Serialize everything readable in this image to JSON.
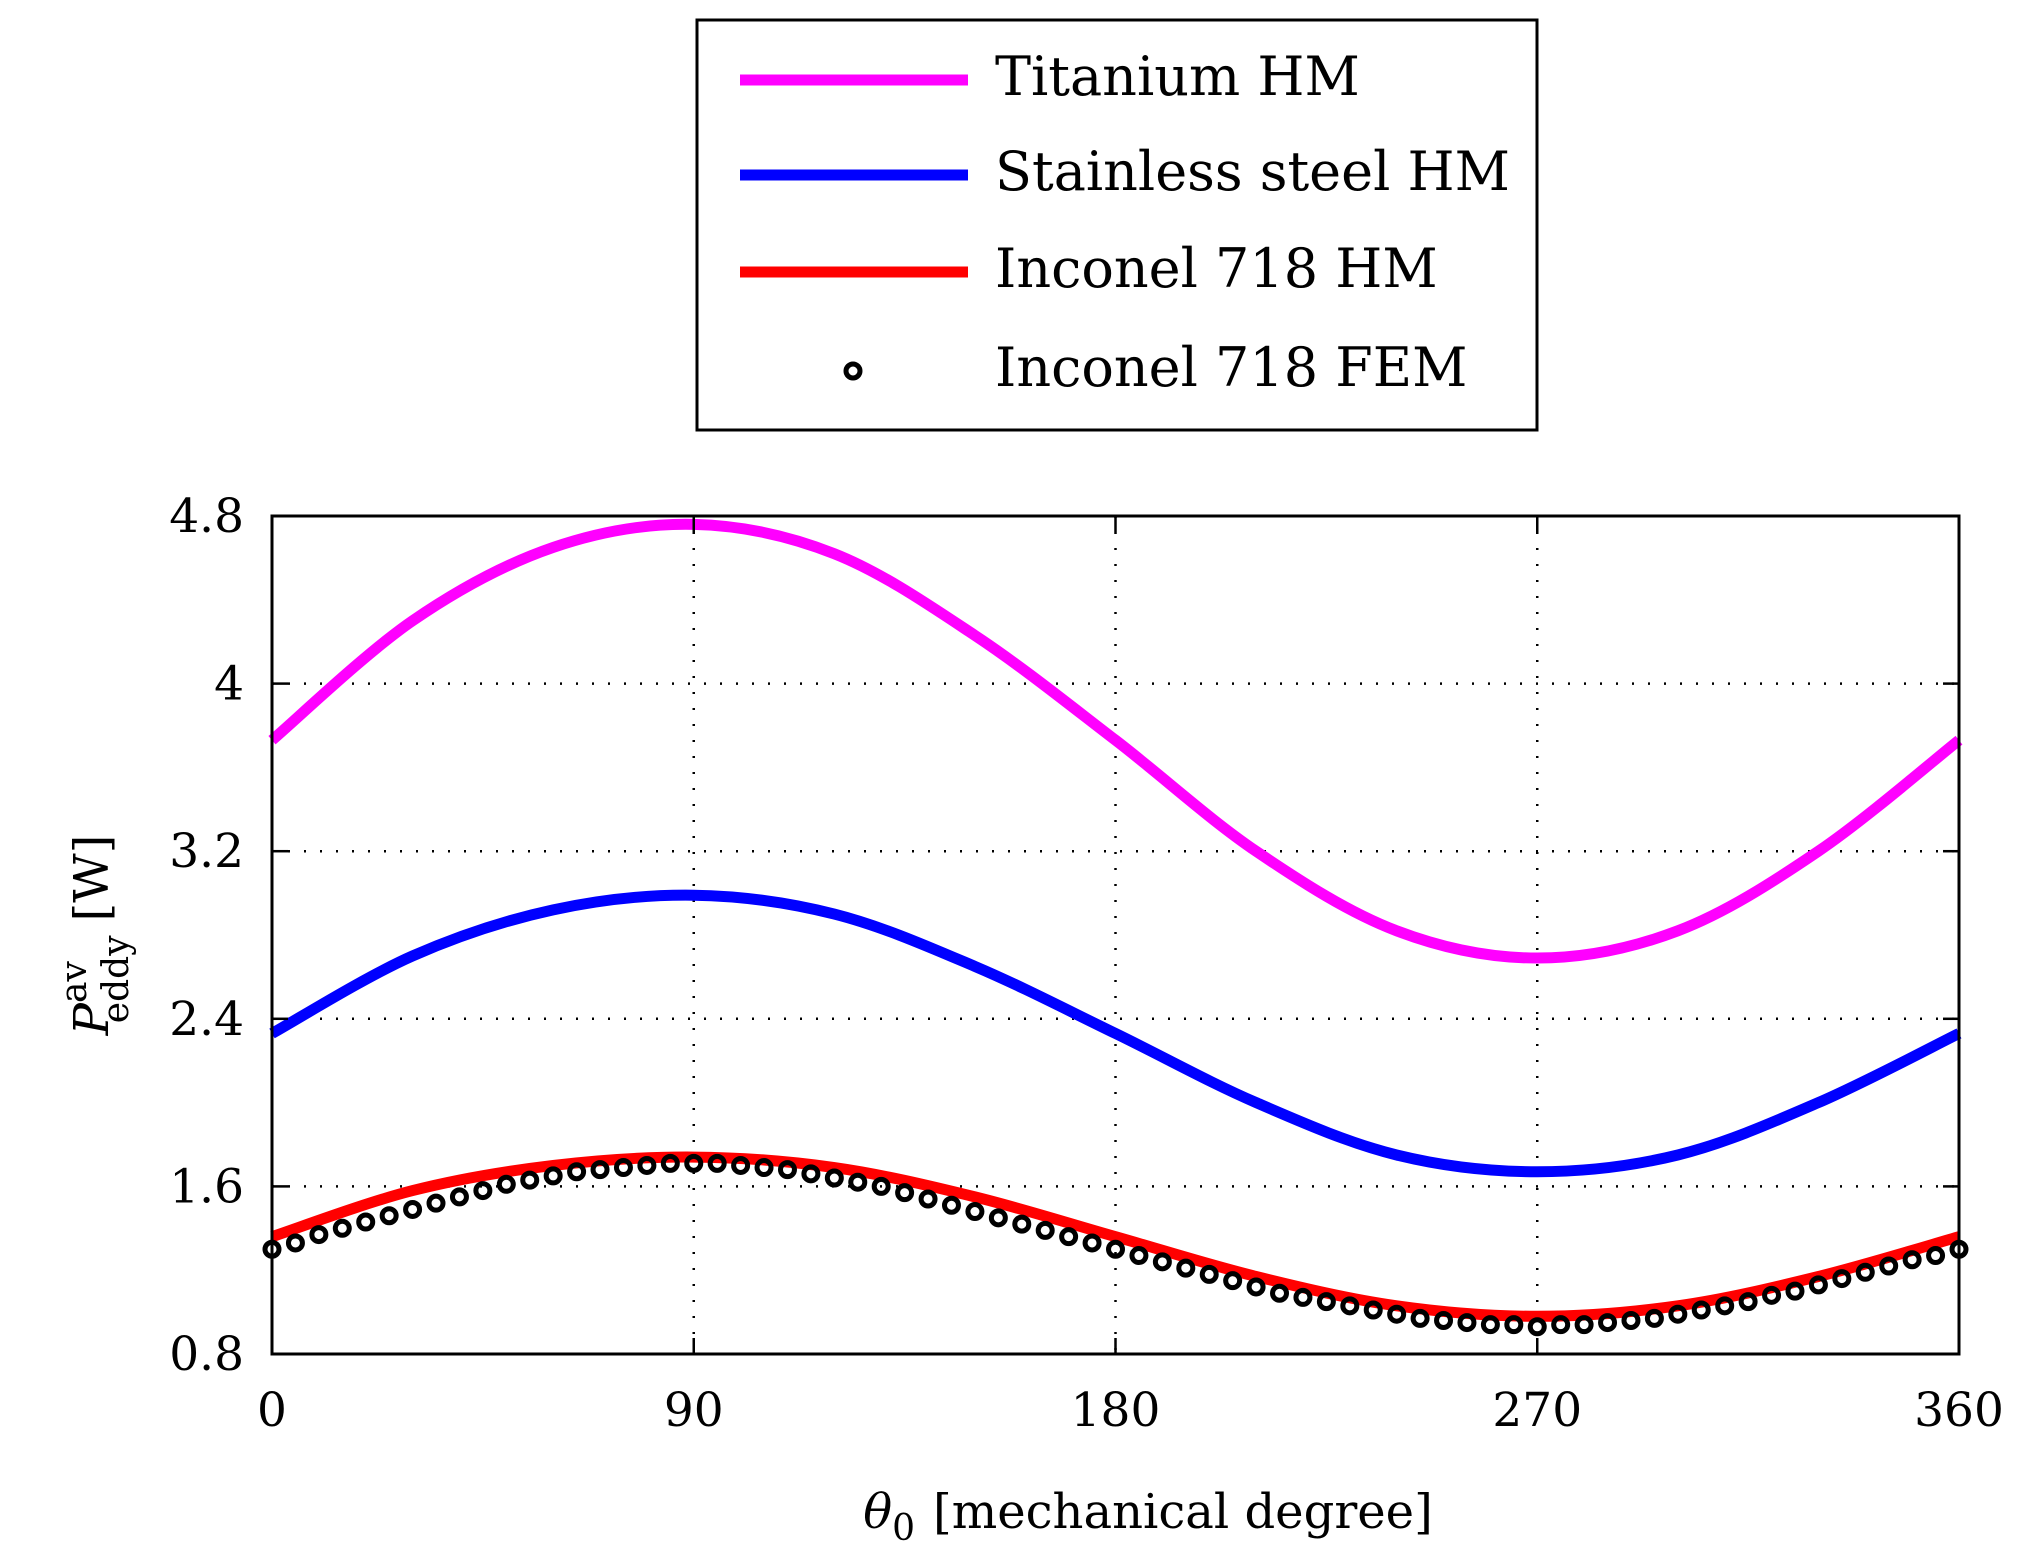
{
  "chart_data": {
    "type": "line",
    "xlabel": {
      "symbol": "θ",
      "subscript": "0",
      "text": "[mechanical degree]"
    },
    "ylabel": {
      "symbol": "P",
      "superscript": "av",
      "subscript": "eddy",
      "text": "[W]"
    },
    "xlim": [
      0,
      360
    ],
    "ylim": [
      0.8,
      4.8
    ],
    "xticks": [
      0,
      90,
      180,
      270,
      360
    ],
    "xtick_labels": [
      "0",
      "90",
      "180",
      "270",
      "360"
    ],
    "yticks": [
      0.8,
      1.6,
      2.4,
      3.2,
      4.0,
      4.8
    ],
    "ytick_labels": [
      "0.8",
      "1.6",
      "2.4",
      "3.2",
      "4",
      "4.8"
    ],
    "grid": true,
    "legend_position": "above-plot",
    "legend_entries": [
      "Titanium HM",
      "Stainless steel HM",
      "Inconel 718 HM",
      "Inconel 718 FEM"
    ],
    "series": [
      {
        "name": "Titanium HM",
        "style": "line",
        "color": "#ff00ff",
        "x": [
          0,
          30,
          60,
          90,
          120,
          150,
          180,
          210,
          240,
          270,
          300,
          330,
          360
        ],
        "y": [
          3.73,
          4.3,
          4.65,
          4.76,
          4.62,
          4.23,
          3.73,
          3.2,
          2.82,
          2.69,
          2.82,
          3.2,
          3.73
        ]
      },
      {
        "name": "Stainless steel HM",
        "style": "line",
        "color": "#0000ff",
        "x": [
          0,
          30,
          60,
          90,
          120,
          150,
          180,
          210,
          240,
          270,
          300,
          330,
          360
        ],
        "y": [
          2.33,
          2.7,
          2.92,
          2.99,
          2.9,
          2.65,
          2.33,
          2.0,
          1.75,
          1.67,
          1.75,
          2.0,
          2.33
        ]
      },
      {
        "name": "Inconel 718 HM",
        "style": "line",
        "color": "#ff0000",
        "x": [
          0,
          30,
          60,
          90,
          120,
          150,
          180,
          210,
          240,
          270,
          300,
          330,
          360
        ],
        "y": [
          1.36,
          1.58,
          1.7,
          1.74,
          1.69,
          1.55,
          1.36,
          1.17,
          1.03,
          0.98,
          1.03,
          1.17,
          1.36
        ]
      },
      {
        "name": "Inconel 718 FEM",
        "style": "markers",
        "color": "#000000",
        "x": [
          0,
          5,
          10,
          15,
          20,
          25,
          30,
          35,
          40,
          45,
          50,
          55,
          60,
          65,
          70,
          75,
          80,
          85,
          90,
          95,
          100,
          105,
          110,
          115,
          120,
          125,
          130,
          135,
          140,
          145,
          150,
          155,
          160,
          165,
          170,
          175,
          180,
          185,
          190,
          195,
          200,
          205,
          210,
          215,
          220,
          225,
          230,
          235,
          240,
          245,
          250,
          255,
          260,
          265,
          270,
          275,
          280,
          285,
          290,
          295,
          300,
          305,
          310,
          315,
          320,
          325,
          330,
          335,
          340,
          345,
          350,
          355,
          360
        ],
        "y": [
          1.3,
          1.33,
          1.37,
          1.4,
          1.43,
          1.46,
          1.49,
          1.52,
          1.55,
          1.58,
          1.61,
          1.63,
          1.65,
          1.67,
          1.68,
          1.69,
          1.7,
          1.71,
          1.71,
          1.71,
          1.7,
          1.69,
          1.68,
          1.66,
          1.64,
          1.62,
          1.6,
          1.57,
          1.54,
          1.51,
          1.48,
          1.45,
          1.42,
          1.39,
          1.36,
          1.33,
          1.3,
          1.27,
          1.24,
          1.21,
          1.18,
          1.15,
          1.12,
          1.09,
          1.07,
          1.05,
          1.03,
          1.01,
          0.99,
          0.97,
          0.96,
          0.95,
          0.94,
          0.94,
          0.93,
          0.94,
          0.94,
          0.95,
          0.96,
          0.97,
          0.99,
          1.01,
          1.03,
          1.05,
          1.08,
          1.1,
          1.13,
          1.16,
          1.19,
          1.22,
          1.25,
          1.27,
          1.3
        ]
      }
    ]
  }
}
